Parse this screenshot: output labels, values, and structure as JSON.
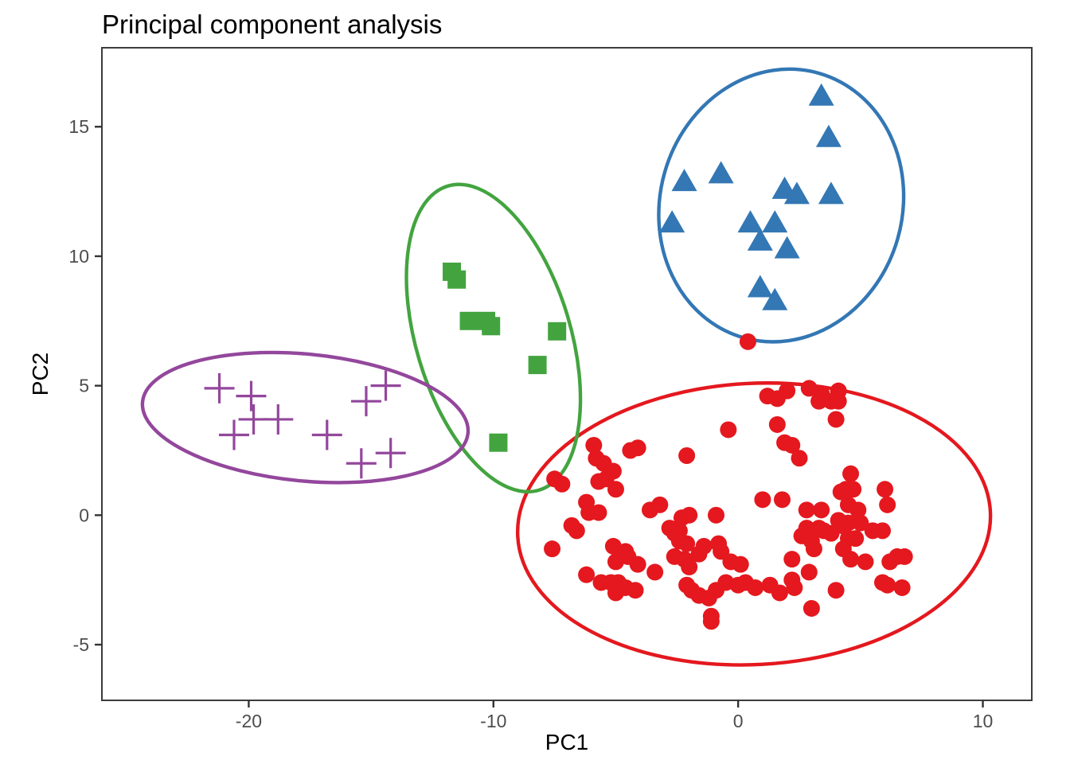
{
  "chart_data": {
    "type": "scatter",
    "title": "Principal component analysis",
    "xlabel": "PC1",
    "ylabel": "PC2",
    "xlim": [
      -26,
      12
    ],
    "ylim": [
      -7.15,
      18.05
    ],
    "grid": false,
    "legend": "none",
    "background": "#ffffff",
    "panel_border_color": "#3c3c3c",
    "tick_color": "#333333",
    "tick_label_color": "#4d4d4d",
    "x_ticks": [
      {
        "value": -20,
        "label": "-20"
      },
      {
        "value": -10,
        "label": "-10"
      },
      {
        "value": 0,
        "label": "0"
      },
      {
        "value": 10,
        "label": "10"
      }
    ],
    "y_ticks": [
      {
        "value": 15,
        "label": "15"
      },
      {
        "value": 10,
        "label": "10"
      },
      {
        "value": 5,
        "label": "5"
      },
      {
        "value": 0,
        "label": "0"
      },
      {
        "value": -5,
        "label": "-5"
      }
    ],
    "series": [
      {
        "name": "cluster-red",
        "marker": "circle",
        "color": "#E4181E",
        "ellipse": {
          "cx": 0.65,
          "cy": -0.34,
          "rx": 9.67,
          "ry": 5.43,
          "angle": -3
        },
        "points": [
          [
            -5.9,
            2.7
          ],
          [
            -5.8,
            2.2
          ],
          [
            -5.5,
            2.0
          ],
          [
            -4.4,
            2.5
          ],
          [
            -4.1,
            2.6
          ],
          [
            -2.1,
            2.3
          ],
          [
            -0.4,
            3.3
          ],
          [
            -7.5,
            1.4
          ],
          [
            -7.2,
            1.2
          ],
          [
            -5.7,
            1.3
          ],
          [
            -5.4,
            1.4
          ],
          [
            -5.1,
            1.7
          ],
          [
            -5.0,
            1.0
          ],
          [
            -6.2,
            0.5
          ],
          [
            -6.1,
            0.1
          ],
          [
            -5.7,
            0.1
          ],
          [
            -6.8,
            -0.4
          ],
          [
            -6.6,
            -0.6
          ],
          [
            -3.6,
            0.2
          ],
          [
            -3.2,
            0.4
          ],
          [
            -2.3,
            -0.1
          ],
          [
            -2.0,
            0.0
          ],
          [
            -0.9,
            0.0
          ],
          [
            1.0,
            0.6
          ],
          [
            -2.4,
            -0.6
          ],
          [
            1.2,
            4.6
          ],
          [
            1.6,
            4.5
          ],
          [
            2.0,
            4.8
          ],
          [
            2.9,
            4.9
          ],
          [
            3.4,
            4.7
          ],
          [
            3.8,
            4.4
          ],
          [
            4.1,
            4.8
          ],
          [
            4.1,
            4.4
          ],
          [
            3.3,
            4.4
          ],
          [
            4.0,
            3.7
          ],
          [
            1.6,
            3.5
          ],
          [
            1.9,
            2.8
          ],
          [
            2.2,
            2.7
          ],
          [
            2.5,
            2.2
          ],
          [
            4.6,
            1.6
          ],
          [
            4.4,
            1.0
          ],
          [
            4.7,
            1.0
          ],
          [
            4.2,
            0.9
          ],
          [
            4.5,
            0.4
          ],
          [
            4.9,
            0.2
          ],
          [
            6.0,
            1.0
          ],
          [
            6.1,
            0.4
          ],
          [
            1.8,
            0.6
          ],
          [
            2.8,
            0.2
          ],
          [
            3.4,
            0.2
          ],
          [
            4.1,
            -0.2
          ],
          [
            4.5,
            -0.3
          ],
          [
            5.0,
            -0.3
          ],
          [
            2.8,
            -0.5
          ],
          [
            3.3,
            -0.5
          ],
          [
            -7.6,
            -1.3
          ],
          [
            -5.1,
            -1.2
          ],
          [
            -4.6,
            -1.4
          ],
          [
            -5.0,
            -1.8
          ],
          [
            -4.5,
            -1.6
          ],
          [
            -4.1,
            -1.9
          ],
          [
            -6.2,
            -2.3
          ],
          [
            -5.6,
            -2.6
          ],
          [
            -5.2,
            -2.6
          ],
          [
            -4.9,
            -2.6
          ],
          [
            -4.6,
            -2.8
          ],
          [
            -5.0,
            -3.0
          ],
          [
            -4.2,
            -2.9
          ],
          [
            -3.4,
            -2.2
          ],
          [
            -2.8,
            -0.5
          ],
          [
            -2.6,
            -0.7
          ],
          [
            -2.4,
            -1.0
          ],
          [
            -2.1,
            -1.1
          ],
          [
            -2.6,
            -1.6
          ],
          [
            -2.2,
            -1.7
          ],
          [
            -2.0,
            -2.0
          ],
          [
            -1.6,
            -1.5
          ],
          [
            -1.4,
            -1.2
          ],
          [
            -0.8,
            -1.1
          ],
          [
            -0.7,
            -1.4
          ],
          [
            -0.3,
            -1.8
          ],
          [
            0.1,
            -1.9
          ],
          [
            -2.1,
            -2.7
          ],
          [
            -1.9,
            -2.9
          ],
          [
            -1.6,
            -3.1
          ],
          [
            -1.2,
            -3.2
          ],
          [
            -0.9,
            -2.9
          ],
          [
            -0.5,
            -2.6
          ],
          [
            0.0,
            -2.7
          ],
          [
            0.3,
            -2.6
          ],
          [
            0.7,
            -2.8
          ],
          [
            -1.1,
            -3.9
          ],
          [
            -1.1,
            -4.1
          ],
          [
            2.6,
            -0.8
          ],
          [
            3.0,
            -1.0
          ],
          [
            3.1,
            -1.3
          ],
          [
            3.5,
            -0.6
          ],
          [
            3.8,
            -0.7
          ],
          [
            4.2,
            -0.4
          ],
          [
            4.5,
            -0.9
          ],
          [
            4.8,
            -0.9
          ],
          [
            4.3,
            -1.3
          ],
          [
            4.6,
            -1.7
          ],
          [
            5.2,
            -1.8
          ],
          [
            5.5,
            -0.6
          ],
          [
            5.9,
            -0.6
          ],
          [
            2.2,
            -1.7
          ],
          [
            1.3,
            -2.7
          ],
          [
            1.7,
            -3.0
          ],
          [
            2.2,
            -2.5
          ],
          [
            2.3,
            -2.8
          ],
          [
            2.9,
            -2.2
          ],
          [
            3.0,
            -3.6
          ],
          [
            4.0,
            -2.9
          ],
          [
            5.9,
            -2.6
          ],
          [
            6.1,
            -2.7
          ],
          [
            6.5,
            -1.6
          ],
          [
            6.8,
            -1.6
          ],
          [
            6.2,
            -1.8
          ],
          [
            6.7,
            -2.8
          ],
          [
            0.4,
            6.7
          ]
        ]
      },
      {
        "name": "cluster-blue",
        "marker": "triangle",
        "color": "#3377B4",
        "ellipse": {
          "cx": 1.76,
          "cy": 11.96,
          "rx": 4.95,
          "ry": 5.31,
          "angle": 16
        },
        "points": [
          [
            3.4,
            16.2
          ],
          [
            3.7,
            14.6
          ],
          [
            -2.2,
            12.9
          ],
          [
            -0.7,
            13.2
          ],
          [
            1.9,
            12.6
          ],
          [
            2.4,
            12.4
          ],
          [
            3.8,
            12.4
          ],
          [
            -2.7,
            11.3
          ],
          [
            0.5,
            11.3
          ],
          [
            1.5,
            11.3
          ],
          [
            0.9,
            10.6
          ],
          [
            2.0,
            10.3
          ],
          [
            0.9,
            8.8
          ],
          [
            1.5,
            8.3
          ]
        ]
      },
      {
        "name": "cluster-green",
        "marker": "square",
        "color": "#43A43F",
        "ellipse": {
          "cx": -10.0,
          "cy": 6.84,
          "rx": 3.16,
          "ry": 6.13,
          "angle": -16.7
        },
        "points": [
          [
            -11.7,
            9.4
          ],
          [
            -11.5,
            9.1
          ],
          [
            -11.0,
            7.5
          ],
          [
            -10.3,
            7.5
          ],
          [
            -10.1,
            7.3
          ],
          [
            -7.4,
            7.1
          ],
          [
            -8.2,
            5.8
          ],
          [
            -9.8,
            2.8
          ]
        ]
      },
      {
        "name": "cluster-purple",
        "marker": "plus",
        "color": "#93479C",
        "ellipse": {
          "cx": -17.69,
          "cy": 3.77,
          "rx": 6.68,
          "ry": 2.45,
          "angle": 5.5
        },
        "points": [
          [
            -21.2,
            4.9
          ],
          [
            -19.9,
            4.6
          ],
          [
            -19.8,
            3.7
          ],
          [
            -18.8,
            3.7
          ],
          [
            -20.6,
            3.1
          ],
          [
            -16.8,
            3.1
          ],
          [
            -15.2,
            4.4
          ],
          [
            -14.4,
            5.0
          ],
          [
            -15.4,
            2.0
          ],
          [
            -14.2,
            2.4
          ]
        ]
      }
    ]
  }
}
